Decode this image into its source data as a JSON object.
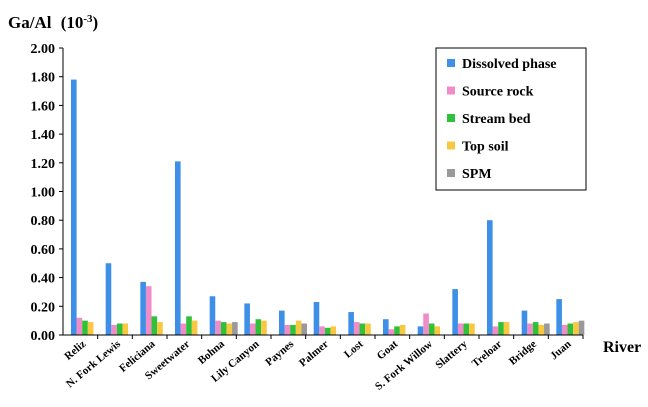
{
  "chart_data": {
    "type": "bar",
    "ylabel": "Ga/Al",
    "ylabel_unit": "(10-3)",
    "ylabel_unit_base": "(10",
    "ylabel_unit_exp": "-3",
    "ylabel_unit_close": ")",
    "xlabel": "River",
    "ylim": [
      0,
      2.0
    ],
    "ytick_step": 0.2,
    "ytick_labels": [
      "0.00",
      "0.20",
      "0.40",
      "0.60",
      "0.80",
      "1.00",
      "1.20",
      "1.40",
      "1.60",
      "1.80",
      "2.00"
    ],
    "categories": [
      "Reliz",
      "N. Fork Lewis",
      "Feliciana",
      "Sweetwater",
      "Bohna",
      "Lily Canyon",
      "Paynes",
      "Palmer",
      "Lost",
      "Goat",
      "S. Fork Willow",
      "Slattery",
      "Treloar",
      "Bridge",
      "Juan"
    ],
    "series": [
      {
        "name": "Dissolved phase",
        "color": "#3d8fe8",
        "values": [
          1.78,
          0.5,
          0.37,
          1.21,
          0.27,
          0.22,
          0.17,
          0.23,
          0.16,
          0.11,
          0.06,
          0.32,
          0.8,
          0.17,
          0.25
        ]
      },
      {
        "name": "Source rock",
        "color": "#f08cc8",
        "values": [
          0.12,
          0.07,
          0.34,
          0.08,
          0.1,
          0.08,
          0.07,
          0.06,
          0.09,
          0.04,
          0.15,
          0.08,
          0.06,
          0.08,
          0.07
        ]
      },
      {
        "name": "Stream bed",
        "color": "#2fc13a",
        "values": [
          0.1,
          0.08,
          0.13,
          0.13,
          0.09,
          0.11,
          0.07,
          0.05,
          0.08,
          0.06,
          0.08,
          0.08,
          0.09,
          0.09,
          0.08
        ]
      },
      {
        "name": "Top soil",
        "color": "#f7c840",
        "values": [
          0.09,
          0.08,
          0.09,
          0.1,
          0.08,
          0.1,
          0.1,
          0.06,
          0.08,
          0.07,
          0.06,
          0.08,
          0.09,
          0.07,
          0.09
        ]
      },
      {
        "name": "SPM",
        "color": "#999999",
        "values": [
          null,
          null,
          null,
          null,
          0.09,
          null,
          0.08,
          null,
          null,
          null,
          null,
          null,
          null,
          0.08,
          0.1
        ]
      }
    ],
    "legend_position": "top-right",
    "grid": false
  }
}
